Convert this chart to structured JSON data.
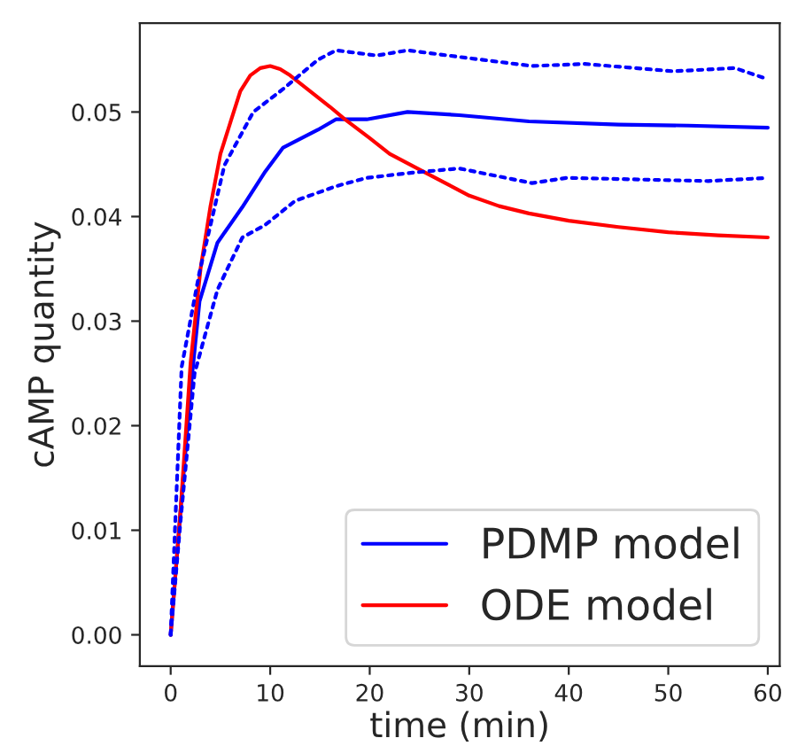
{
  "chart_data": {
    "type": "line",
    "xlabel": "time (min)",
    "ylabel": "cAMP quantity",
    "xlim": [
      -3.1,
      61.2
    ],
    "ylim": [
      -0.003,
      0.0585
    ],
    "xticks": [
      0,
      10,
      20,
      30,
      40,
      50,
      60
    ],
    "yticks": [
      {
        "value": 0,
        "label": "0.00"
      },
      {
        "value": 0.01,
        "label": "0.01"
      },
      {
        "value": 0.02,
        "label": "0.02"
      },
      {
        "value": 0.03,
        "label": "0.03"
      },
      {
        "value": 0.04,
        "label": "0.04"
      },
      {
        "value": 0.05,
        "label": "0.05"
      }
    ],
    "grid": false,
    "legend": "bottom right",
    "series": [
      {
        "name": "PDMP model",
        "color": "#0000ff",
        "line_style": "solid",
        "x": [
          0,
          1,
          2,
          2.9,
          4.7,
          7.2,
          9.5,
          11.3,
          14.8,
          16.6,
          19.7,
          23.8,
          29,
          36,
          45,
          52,
          60
        ],
        "values": [
          0,
          0.012,
          0.0234,
          0.0319,
          0.0375,
          0.0409,
          0.0443,
          0.0466,
          0.0483,
          0.0493,
          0.0493,
          0.05,
          0.0497,
          0.0491,
          0.0488,
          0.0487,
          0.0485
        ]
      },
      {
        "color": "#0000ff",
        "line_style": "dotted",
        "x": [
          0,
          1.1,
          2.9,
          5.4,
          8.3,
          11.3,
          14.8,
          16.6,
          20.7,
          23.8,
          27.9,
          36.3,
          41.6,
          50.5,
          56.7,
          59.8
        ],
        "values": [
          0,
          0.0256,
          0.0347,
          0.0449,
          0.05,
          0.0522,
          0.055,
          0.0559,
          0.0554,
          0.0559,
          0.0554,
          0.0544,
          0.0546,
          0.0539,
          0.0542,
          0.0532
        ]
      },
      {
        "color": "#0000ff",
        "line_style": "dotted",
        "x": [
          0,
          1,
          2.4,
          4.7,
          7.2,
          9.5,
          12.5,
          16.6,
          19.7,
          24.3,
          29,
          36.3,
          39.8,
          54,
          60
        ],
        "values": [
          0,
          0.011,
          0.025,
          0.033,
          0.038,
          0.0392,
          0.0415,
          0.0429,
          0.0437,
          0.0442,
          0.0446,
          0.0432,
          0.0437,
          0.0434,
          0.0437
        ]
      },
      {
        "name": "ODE model",
        "color": "#ff0000",
        "line_style": "solid",
        "x": [
          0,
          1,
          2,
          3,
          4,
          5,
          6,
          7,
          8,
          9,
          10,
          11,
          12,
          14,
          16,
          17.5,
          20,
          22,
          25,
          27,
          30,
          33,
          36,
          40,
          45,
          50,
          55,
          60
        ],
        "values": [
          0,
          0.012,
          0.026,
          0.035,
          0.041,
          0.046,
          0.049,
          0.052,
          0.0535,
          0.0542,
          0.0544,
          0.0541,
          0.0535,
          0.052,
          0.0505,
          0.0493,
          0.0475,
          0.046,
          0.0445,
          0.0435,
          0.042,
          0.041,
          0.0403,
          0.0396,
          0.039,
          0.0385,
          0.0382,
          0.038
        ]
      }
    ]
  }
}
